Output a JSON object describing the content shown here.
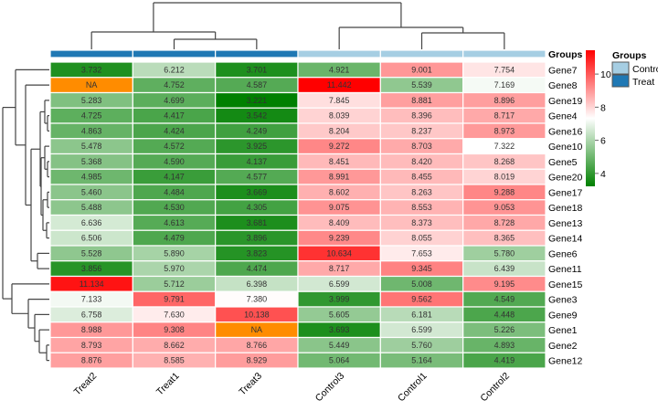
{
  "chart_data": {
    "type": "heatmap",
    "columns": [
      "Treat2",
      "Treat1",
      "Treat3",
      "Control3",
      "Control1",
      "Control2"
    ],
    "column_groups": [
      "Treat",
      "Treat",
      "Treat",
      "Control",
      "Control",
      "Control"
    ],
    "rows": [
      "Gene7",
      "Gene8",
      "Gene19",
      "Gene4",
      "Gene16",
      "Gene10",
      "Gene5",
      "Gene20",
      "Gene17",
      "Gene18",
      "Gene13",
      "Gene14",
      "Gene6",
      "Gene11",
      "Gene15",
      "Gene3",
      "Gene9",
      "Gene1",
      "Gene2",
      "Gene12"
    ],
    "values": [
      [
        "3.732",
        "6.212",
        "3.701",
        "4.921",
        "9.001",
        "7.754"
      ],
      [
        "NA",
        "4.752",
        "4.587",
        "11.442",
        "5.539",
        "7.169"
      ],
      [
        "5.283",
        "4.699",
        "3.221",
        "7.845",
        "8.881",
        "8.896"
      ],
      [
        "4.725",
        "4.417",
        "3.542",
        "8.039",
        "8.396",
        "8.717"
      ],
      [
        "4.863",
        "4.424",
        "4.249",
        "8.204",
        "8.237",
        "8.973"
      ],
      [
        "5.478",
        "4.572",
        "3.925",
        "9.272",
        "8.703",
        "7.322"
      ],
      [
        "5.368",
        "4.590",
        "4.137",
        "8.451",
        "8.420",
        "8.268"
      ],
      [
        "4.985",
        "4.147",
        "4.577",
        "8.991",
        "8.455",
        "8.019"
      ],
      [
        "5.460",
        "4.484",
        "3.669",
        "8.602",
        "8.263",
        "9.288"
      ],
      [
        "5.488",
        "4.530",
        "4.305",
        "9.075",
        "8.553",
        "9.053"
      ],
      [
        "6.636",
        "4.613",
        "3.681",
        "8.409",
        "8.373",
        "8.728"
      ],
      [
        "6.506",
        "4.479",
        "3.896",
        "9.239",
        "8.055",
        "8.365"
      ],
      [
        "5.528",
        "5.890",
        "3.823",
        "10.634",
        "7.653",
        "5.780"
      ],
      [
        "3.856",
        "5.970",
        "4.474",
        "8.717",
        "9.345",
        "6.439"
      ],
      [
        "11.134",
        "5.712",
        "6.398",
        "6.599",
        "5.008",
        "9.195"
      ],
      [
        "7.133",
        "9.791",
        "7.380",
        "3.999",
        "9.562",
        "4.549"
      ],
      [
        "6.758",
        "7.630",
        "10.138",
        "5.605",
        "6.181",
        "4.448"
      ],
      [
        "8.988",
        "9.308",
        "NA",
        "3.693",
        "6.599",
        "5.226"
      ],
      [
        "8.793",
        "8.662",
        "8.766",
        "5.449",
        "5.760",
        "4.893"
      ],
      [
        "8.876",
        "8.585",
        "8.929",
        "5.064",
        "5.164",
        "4.419"
      ]
    ],
    "annotation_title": "Groups",
    "colorbar": {
      "min": 3.22,
      "max": 11.44,
      "ticks": [
        4,
        6,
        8,
        10
      ],
      "tick_labels": [
        "4",
        "6",
        "8",
        "10"
      ],
      "low_color": "#008000",
      "mid_color": "#ffffff",
      "high_color": "#ff0000"
    },
    "na_color": "#ff8c00",
    "legend": {
      "title": "Groups",
      "entries": [
        {
          "label": "Control",
          "color": "#a6cee3"
        },
        {
          "label": "Treat",
          "color": "#1f78b4"
        }
      ]
    }
  }
}
